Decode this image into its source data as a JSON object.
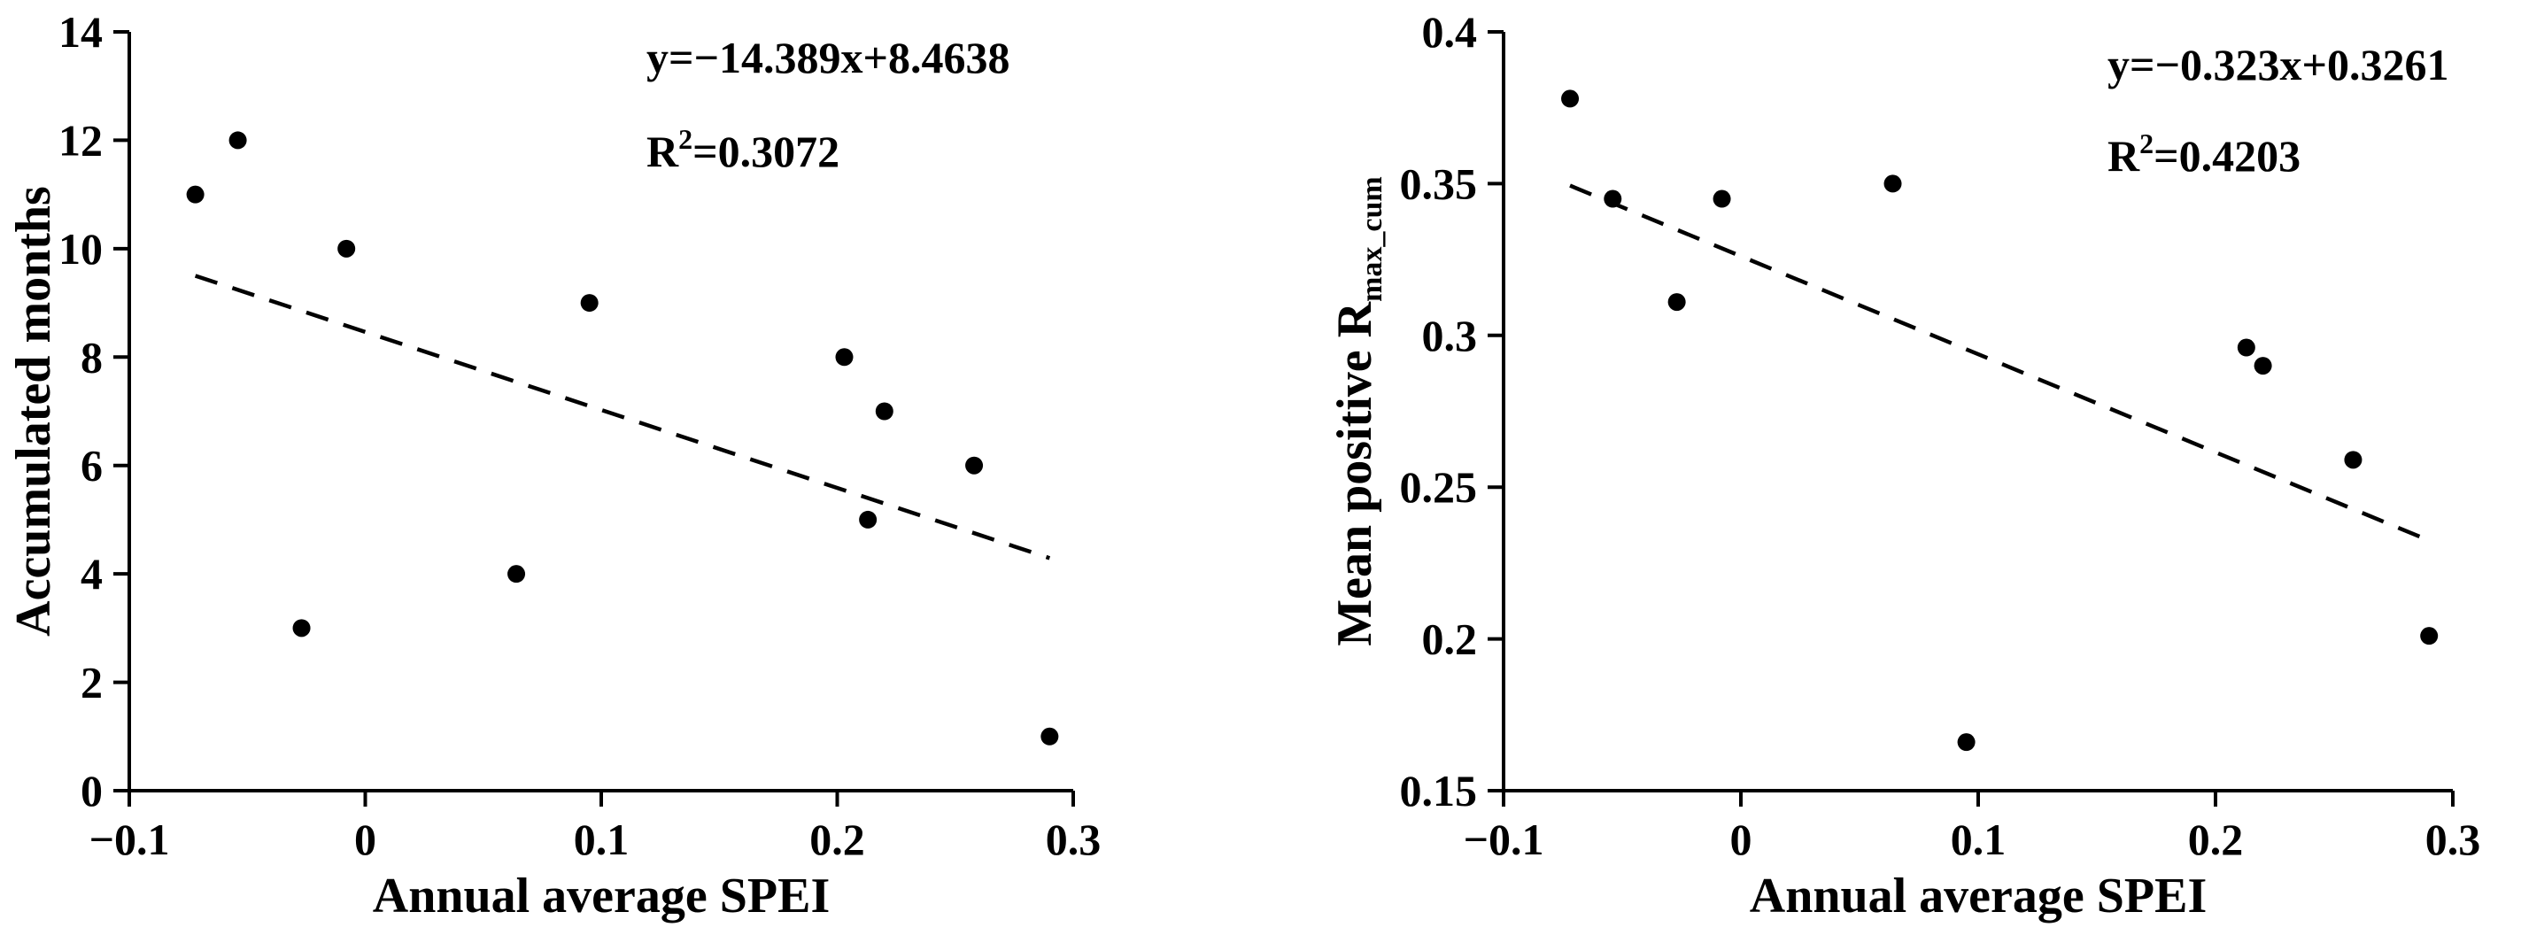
{
  "chart_data": [
    {
      "type": "scatter",
      "xlabel": "Annual average SPEI",
      "ylabel": "Accumulated months",
      "xlim": [
        -0.1,
        0.3
      ],
      "ylim": [
        0,
        14
      ],
      "x_ticks": [
        "−0.1",
        "0",
        "0.1",
        "0.2",
        "0.3"
      ],
      "y_ticks": [
        "0",
        "2",
        "4",
        "6",
        "8",
        "10",
        "12",
        "14"
      ],
      "x_tick_values": [
        -0.1,
        0,
        0.1,
        0.2,
        0.3
      ],
      "y_tick_values": [
        0,
        2,
        4,
        6,
        8,
        10,
        12,
        14
      ],
      "points": [
        {
          "x": -0.072,
          "y": 11
        },
        {
          "x": -0.054,
          "y": 12
        },
        {
          "x": -0.027,
          "y": 3
        },
        {
          "x": -0.008,
          "y": 10
        },
        {
          "x": 0.064,
          "y": 4
        },
        {
          "x": 0.095,
          "y": 9
        },
        {
          "x": 0.203,
          "y": 8
        },
        {
          "x": 0.213,
          "y": 5
        },
        {
          "x": 0.22,
          "y": 7
        },
        {
          "x": 0.258,
          "y": 6
        },
        {
          "x": 0.29,
          "y": 1
        }
      ],
      "trendline": {
        "slope": -14.389,
        "intercept": 8.4638,
        "x_range": [
          -0.072,
          0.29
        ],
        "style": "dashed"
      },
      "equation": "y=−14.389x+8.4638",
      "r2_label": "R",
      "r2_sup": "2",
      "r2_value": "=0.3072",
      "grid": false,
      "legend": "none"
    },
    {
      "type": "scatter",
      "xlabel": "Annual average SPEI",
      "ylabel": "Mean positive R",
      "ylabel_sub": "max_cum",
      "xlim": [
        -0.1,
        0.3
      ],
      "ylim": [
        0.15,
        0.4
      ],
      "x_ticks": [
        "−0.1",
        "0",
        "0.1",
        "0.2",
        "0.3"
      ],
      "y_ticks": [
        "0.15",
        "0.2",
        "0.25",
        "0.3",
        "0.35",
        "0.4"
      ],
      "x_tick_values": [
        -0.1,
        0,
        0.1,
        0.2,
        0.3
      ],
      "y_tick_values": [
        0.15,
        0.2,
        0.25,
        0.3,
        0.35,
        0.4
      ],
      "points": [
        {
          "x": -0.072,
          "y": 0.378
        },
        {
          "x": -0.054,
          "y": 0.345
        },
        {
          "x": -0.027,
          "y": 0.311
        },
        {
          "x": -0.008,
          "y": 0.345
        },
        {
          "x": 0.064,
          "y": 0.35
        },
        {
          "x": 0.095,
          "y": 0.166
        },
        {
          "x": 0.213,
          "y": 0.296
        },
        {
          "x": 0.22,
          "y": 0.29
        },
        {
          "x": 0.258,
          "y": 0.259
        },
        {
          "x": 0.29,
          "y": 0.201
        }
      ],
      "trendline": {
        "slope": -0.323,
        "intercept": 0.3261,
        "x_range": [
          -0.072,
          0.29
        ],
        "style": "dashed"
      },
      "equation": "y=−0.323x+0.3261",
      "r2_label": "R",
      "r2_sup": "2",
      "r2_value": "=0.4203",
      "grid": false,
      "legend": "none"
    }
  ]
}
